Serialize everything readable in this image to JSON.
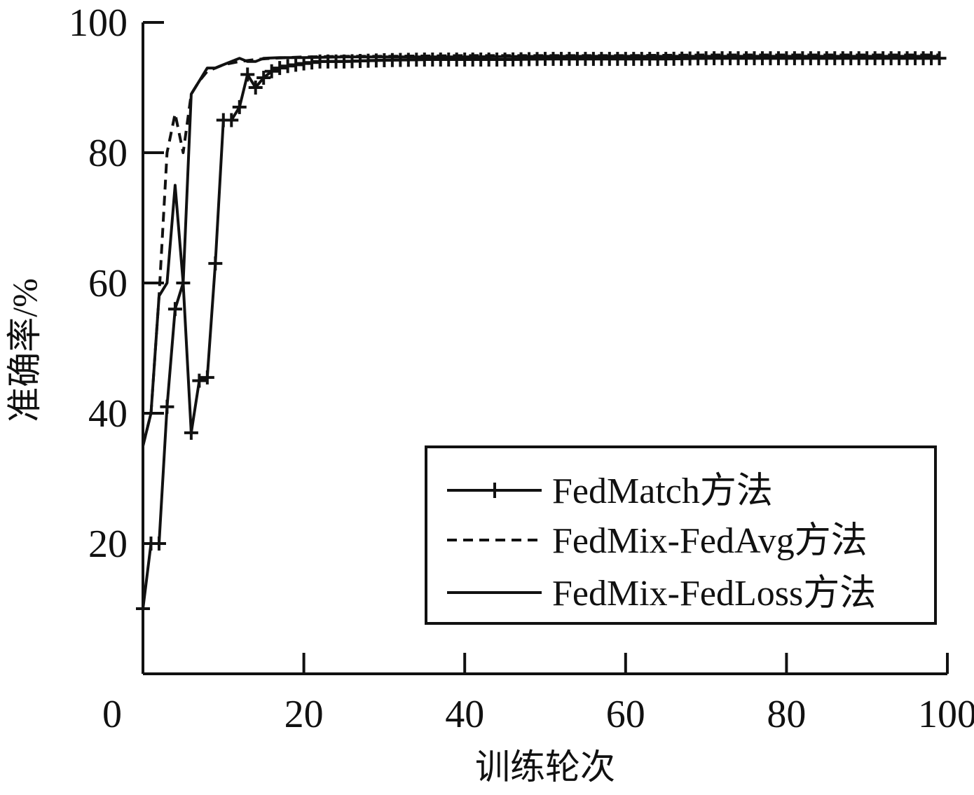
{
  "chart_data": {
    "type": "line",
    "xlabel": "训练轮次",
    "ylabel": "准确率/%",
    "xlim": [
      0,
      100
    ],
    "ylim": [
      0,
      100
    ],
    "x_ticks": [
      "0",
      "20",
      "40",
      "60",
      "80",
      "100"
    ],
    "y_ticks": [
      "20",
      "40",
      "60",
      "80",
      "100"
    ],
    "grid": false,
    "legend_position": "bottom-right",
    "series": [
      {
        "name": "FedMatch方法",
        "style": "solid-with-plus-markers",
        "color": "#111111",
        "points": [
          [
            0,
            10
          ],
          [
            1,
            20
          ],
          [
            2,
            20
          ],
          [
            3,
            41
          ],
          [
            4,
            56
          ],
          [
            5,
            60
          ],
          [
            6,
            37
          ],
          [
            7,
            45
          ],
          [
            8,
            45.5
          ],
          [
            9,
            63
          ],
          [
            10,
            85
          ],
          [
            11,
            85
          ],
          [
            12,
            87
          ],
          [
            13,
            92
          ],
          [
            14,
            90
          ],
          [
            15,
            91.5
          ],
          [
            16,
            92.5
          ],
          [
            17,
            93
          ],
          [
            18,
            93.3
          ],
          [
            19,
            93.5
          ],
          [
            20,
            93.7
          ],
          [
            22,
            94
          ],
          [
            25,
            94
          ],
          [
            30,
            94.2
          ],
          [
            35,
            94.3
          ],
          [
            40,
            94.3
          ],
          [
            45,
            94.3
          ],
          [
            50,
            94.4
          ],
          [
            55,
            94.4
          ],
          [
            60,
            94.4
          ],
          [
            65,
            94.4
          ],
          [
            70,
            94.5
          ],
          [
            75,
            94.5
          ],
          [
            80,
            94.5
          ],
          [
            85,
            94.5
          ],
          [
            90,
            94.5
          ],
          [
            95,
            94.5
          ],
          [
            99,
            94.5
          ]
        ]
      },
      {
        "name": "FedMix-FedAvg方法",
        "style": "dashed",
        "color": "#111111",
        "points": [
          [
            0,
            35
          ],
          [
            1,
            40
          ],
          [
            2,
            58
          ],
          [
            3,
            80
          ],
          [
            4,
            86
          ],
          [
            5,
            80
          ],
          [
            6,
            89
          ],
          [
            7,
            91
          ],
          [
            8,
            92.5
          ],
          [
            9,
            93
          ],
          [
            10,
            93.5
          ],
          [
            12,
            94
          ],
          [
            14,
            94.3
          ],
          [
            16,
            94.5
          ],
          [
            20,
            94.7
          ],
          [
            25,
            94.8
          ],
          [
            30,
            94.8
          ],
          [
            40,
            94.9
          ],
          [
            50,
            94.9
          ],
          [
            60,
            94.9
          ],
          [
            70,
            95
          ],
          [
            80,
            95
          ],
          [
            90,
            95
          ],
          [
            99,
            95
          ]
        ]
      },
      {
        "name": "FedMix-FedLoss方法",
        "style": "solid",
        "color": "#111111",
        "points": [
          [
            0,
            35
          ],
          [
            1,
            40
          ],
          [
            2,
            58
          ],
          [
            3,
            60
          ],
          [
            4,
            75
          ],
          [
            5,
            60
          ],
          [
            6,
            89
          ],
          [
            7,
            91
          ],
          [
            8,
            93
          ],
          [
            9,
            93
          ],
          [
            10,
            93.5
          ],
          [
            12,
            94.5
          ],
          [
            13,
            94
          ],
          [
            14,
            94
          ],
          [
            15,
            94.5
          ],
          [
            17,
            94.6
          ],
          [
            20,
            94.6
          ],
          [
            25,
            94.7
          ],
          [
            30,
            94.7
          ],
          [
            40,
            94.7
          ],
          [
            50,
            94.8
          ],
          [
            60,
            94.8
          ],
          [
            70,
            94.8
          ],
          [
            80,
            94.8
          ],
          [
            90,
            94.8
          ],
          [
            99,
            94.8
          ]
        ]
      }
    ]
  }
}
